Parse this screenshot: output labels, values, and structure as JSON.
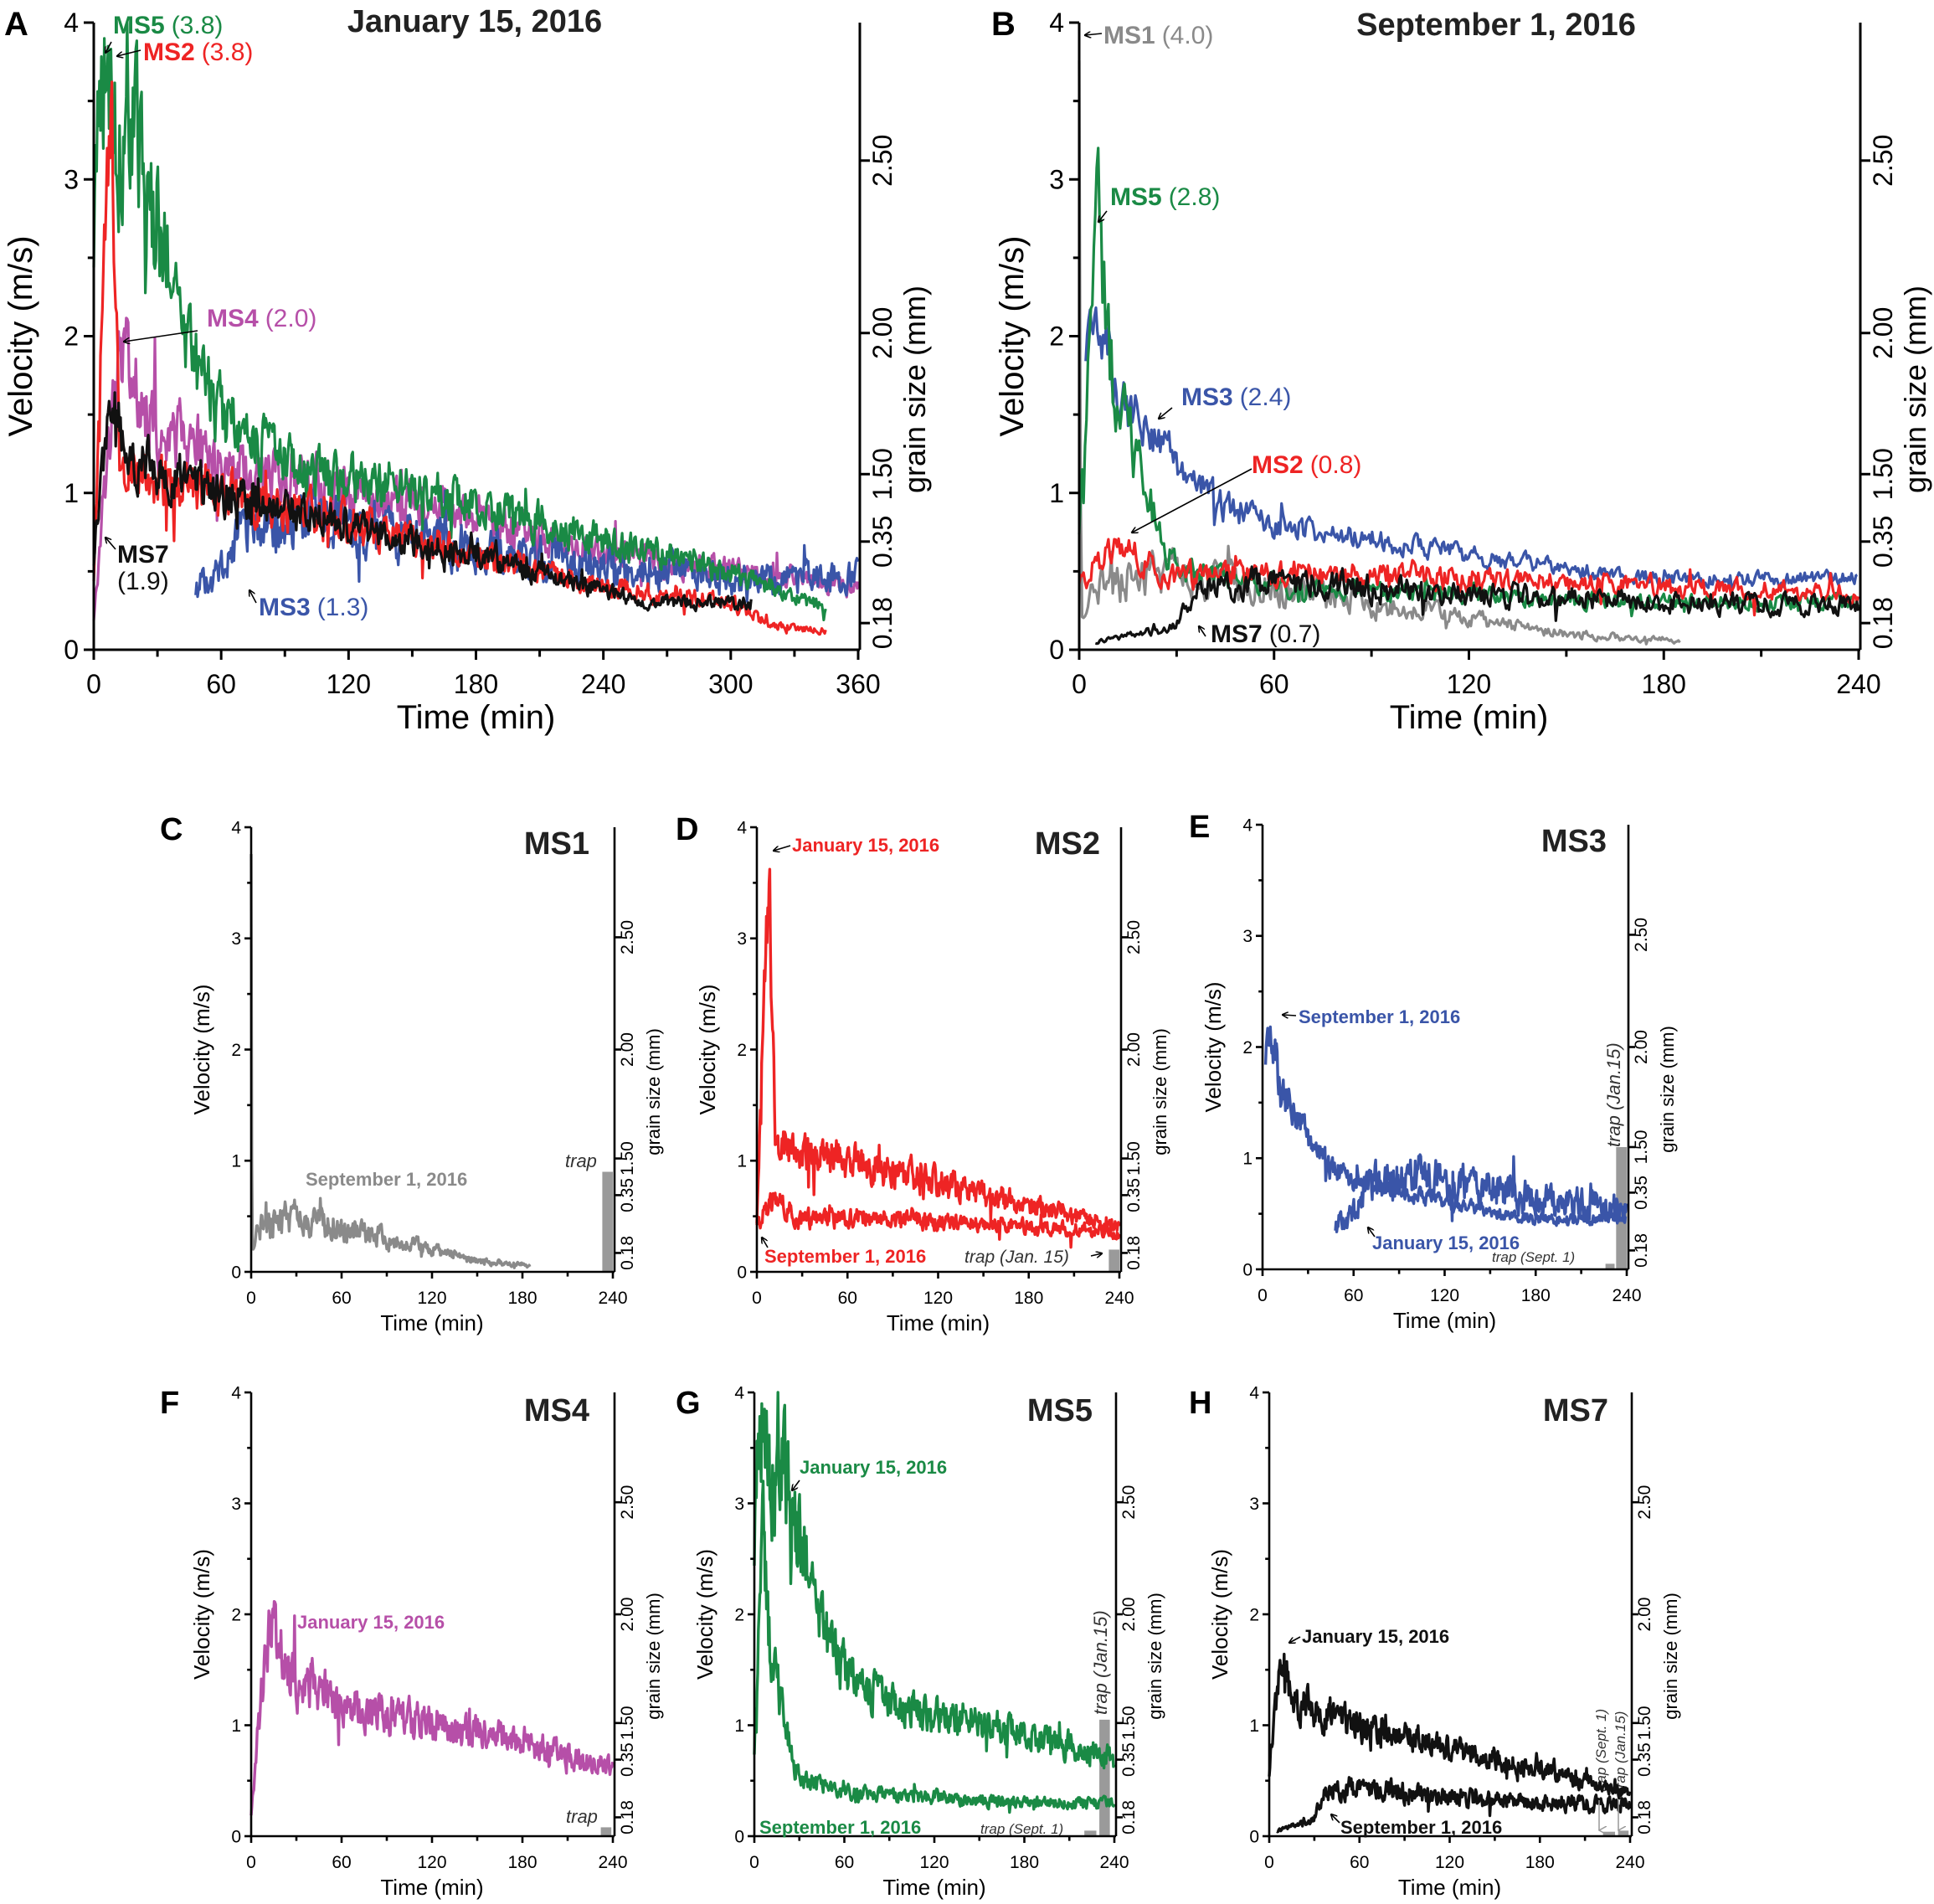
{
  "colors": {
    "MS1": "#8a8a8a",
    "MS2": "#ee2424",
    "MS3": "#3a55a8",
    "MS4": "#b64fa8",
    "MS5": "#1a8a45",
    "MS7": "#111111",
    "trap": "#9a9a9a"
  },
  "axis_labels": {
    "velocity": "Velocity (m/s)",
    "time": "Time (min)",
    "grain": "grain size (mm)"
  },
  "chart_data": [
    {
      "id": "A",
      "letter": "A",
      "type": "line",
      "title": "January 15, 2016",
      "xlabel": "Time (min)",
      "ylabel": "Velocity (m/s)",
      "y2label": "grain size (mm)",
      "xlim": [
        0,
        360
      ],
      "ylim": [
        0,
        4
      ],
      "x_ticks": [
        "0",
        "60",
        "120",
        "180",
        "240",
        "300",
        "360"
      ],
      "y_ticks": [
        "0",
        "1",
        "2",
        "3",
        "4"
      ],
      "y2_ticks": [
        {
          "label": "0.18",
          "at_velocity": 0.17
        },
        {
          "label": "0.35",
          "at_velocity": 0.69
        },
        {
          "label": "1.50",
          "at_velocity": 1.12
        },
        {
          "label": "2.00",
          "at_velocity": 2.02
        },
        {
          "label": "2.50",
          "at_velocity": 3.12
        }
      ],
      "series": [
        {
          "id": "MS4",
          "name": "MS4",
          "peak": "(2.0)",
          "noise": 0.14,
          "points": [
            [
              0,
              0.2
            ],
            [
              5,
              1.0
            ],
            [
              12,
              1.9
            ],
            [
              30,
              1.4
            ],
            [
              60,
              1.2
            ],
            [
              120,
              1.0
            ],
            [
              180,
              0.85
            ],
            [
              240,
              0.62
            ],
            [
              300,
              0.5
            ],
            [
              360,
              0.4
            ]
          ]
        },
        {
          "id": "MS3",
          "name": "MS3",
          "peak": "(1.3)",
          "noise": 0.2,
          "points": [
            [
              48,
              0.4
            ],
            [
              60,
              0.5
            ],
            [
              75,
              0.85
            ],
            [
              120,
              0.8
            ],
            [
              180,
              0.62
            ],
            [
              240,
              0.55
            ],
            [
              300,
              0.45
            ],
            [
              360,
              0.45
            ]
          ]
        },
        {
          "id": "MS5",
          "name": "MS5",
          "peak": "(3.8)",
          "noise": 0.13,
          "points": [
            [
              0,
              2.7
            ],
            [
              3,
              3.6
            ],
            [
              6,
              3.75
            ],
            [
              12,
              3.2
            ],
            [
              20,
              3.3
            ],
            [
              30,
              2.6
            ],
            [
              40,
              2.3
            ],
            [
              45,
              1.9
            ],
            [
              60,
              1.5
            ],
            [
              90,
              1.2
            ],
            [
              120,
              1.1
            ],
            [
              180,
              0.95
            ],
            [
              240,
              0.7
            ],
            [
              300,
              0.5
            ],
            [
              330,
              0.35
            ],
            [
              345,
              0.25
            ]
          ]
        },
        {
          "id": "MS2",
          "name": "MS2",
          "peak": "(3.8)",
          "noise": 0.14,
          "points": [
            [
              0,
              0.5
            ],
            [
              5,
              2.4
            ],
            [
              8,
              3.75
            ],
            [
              10,
              2.3
            ],
            [
              12,
              1.3
            ],
            [
              20,
              1.1
            ],
            [
              60,
              1.0
            ],
            [
              120,
              0.8
            ],
            [
              180,
              0.6
            ],
            [
              240,
              0.4
            ],
            [
              300,
              0.3
            ],
            [
              320,
              0.15
            ],
            [
              345,
              0.12
            ]
          ]
        },
        {
          "id": "MS7",
          "name": "MS7",
          "peak": "(1.9)",
          "noise": 0.12,
          "points": [
            [
              0,
              0.5
            ],
            [
              3,
              1.1
            ],
            [
              8,
              1.5
            ],
            [
              20,
              1.2
            ],
            [
              60,
              1.0
            ],
            [
              120,
              0.8
            ],
            [
              180,
              0.6
            ],
            [
              240,
              0.38
            ],
            [
              260,
              0.3
            ],
            [
              310,
              0.3
            ]
          ]
        }
      ],
      "annotations": [
        {
          "name": "MS5",
          "value": "(3.8)",
          "series": "MS5"
        },
        {
          "name": "MS2",
          "value": "(3.8)",
          "series": "MS2"
        },
        {
          "name": "MS4",
          "value": "(2.0)",
          "series": "MS4"
        },
        {
          "name": "MS7",
          "value": "(1.9)",
          "series": "MS7"
        },
        {
          "name": "MS3",
          "value": "(1.3)",
          "series": "MS3"
        }
      ],
      "traps": []
    },
    {
      "id": "B",
      "letter": "B",
      "type": "line",
      "title": "September 1, 2016",
      "xlabel": "Time (min)",
      "ylabel": "Velocity (m/s)",
      "y2label": "grain size (mm)",
      "xlim": [
        0,
        240
      ],
      "ylim": [
        0,
        4
      ],
      "x_ticks": [
        "0",
        "60",
        "120",
        "180",
        "240"
      ],
      "y_ticks": [
        "0",
        "1",
        "2",
        "3",
        "4"
      ],
      "y2_ticks": [
        {
          "label": "0.18",
          "at_velocity": 0.17
        },
        {
          "label": "0.35",
          "at_velocity": 0.69
        },
        {
          "label": "1.50",
          "at_velocity": 1.12
        },
        {
          "label": "2.00",
          "at_velocity": 2.02
        },
        {
          "label": "2.50",
          "at_velocity": 3.12
        }
      ],
      "series": [
        {
          "id": "MS1",
          "name": "MS1",
          "peak": "(4.0)",
          "noise": 0.25,
          "points": [
            [
              0,
              4.0
            ],
            [
              0.6,
              0.3
            ],
            [
              10,
              0.45
            ],
            [
              30,
              0.5
            ],
            [
              60,
              0.4
            ],
            [
              90,
              0.3
            ],
            [
              120,
              0.2
            ],
            [
              150,
              0.1
            ],
            [
              185,
              0.06
            ]
          ]
        },
        {
          "id": "MS3",
          "name": "MS3",
          "peak": "(2.4)",
          "noise": 0.09,
          "points": [
            [
              2,
              1.9
            ],
            [
              5,
              2.3
            ],
            [
              12,
              1.6
            ],
            [
              30,
              1.2
            ],
            [
              45,
              0.9
            ],
            [
              60,
              0.8
            ],
            [
              90,
              0.7
            ],
            [
              120,
              0.6
            ],
            [
              180,
              0.45
            ],
            [
              240,
              0.45
            ]
          ]
        },
        {
          "id": "MS5",
          "name": "MS5",
          "peak": "(2.8)",
          "noise": 0.15,
          "points": [
            [
              0,
              0.8
            ],
            [
              3,
              1.8
            ],
            [
              6,
              2.8
            ],
            [
              10,
              1.8
            ],
            [
              20,
              1.0
            ],
            [
              30,
              0.5
            ],
            [
              60,
              0.4
            ],
            [
              120,
              0.35
            ],
            [
              180,
              0.3
            ],
            [
              240,
              0.3
            ]
          ]
        },
        {
          "id": "MS2",
          "name": "MS2",
          "peak": "(0.8)",
          "noise": 0.15,
          "points": [
            [
              0,
              0.45
            ],
            [
              12,
              0.65
            ],
            [
              30,
              0.45
            ],
            [
              60,
              0.5
            ],
            [
              120,
              0.45
            ],
            [
              180,
              0.4
            ],
            [
              240,
              0.35
            ]
          ]
        },
        {
          "id": "MS7",
          "name": "MS7",
          "peak": "(0.7)",
          "noise": 0.2,
          "points": [
            [
              5,
              0.05
            ],
            [
              30,
              0.15
            ],
            [
              35,
              0.38
            ],
            [
              60,
              0.45
            ],
            [
              90,
              0.4
            ],
            [
              120,
              0.35
            ],
            [
              180,
              0.3
            ],
            [
              240,
              0.28
            ]
          ]
        }
      ],
      "annotations": [
        {
          "name": "MS1",
          "value": "(4.0)",
          "series": "MS1"
        },
        {
          "name": "MS5",
          "value": "(2.8)",
          "series": "MS5"
        },
        {
          "name": "MS3",
          "value": "(2.4)",
          "series": "MS3"
        },
        {
          "name": "MS2",
          "value": "(0.8)",
          "series": "MS2"
        },
        {
          "name": "MS7",
          "value": "(0.7)",
          "series": "MS7"
        }
      ],
      "traps": []
    },
    {
      "id": "C",
      "letter": "C",
      "type": "line",
      "title": "MS1",
      "xlim": [
        0,
        240
      ],
      "ylim": [
        0,
        4
      ],
      "x_ticks": [
        "0",
        "60",
        "120",
        "180",
        "240"
      ],
      "y_ticks": [
        "0",
        "1",
        "2",
        "3",
        "4"
      ],
      "y2_ticks": [
        {
          "label": "0.18",
          "at_velocity": 0.17
        },
        {
          "label": "0.35",
          "at_velocity": 0.69
        },
        {
          "label": "1.50",
          "at_velocity": 1.02
        },
        {
          "label": "2.00",
          "at_velocity": 2.0
        },
        {
          "label": "2.50",
          "at_velocity": 3.01
        }
      ],
      "series": [
        {
          "ref": "B.MS1",
          "date": "September 1, 2016"
        }
      ],
      "annotations": [
        {
          "name": "September 1, 2016",
          "series": "MS1"
        }
      ],
      "traps": [
        {
          "label": "trap",
          "height": 0.9,
          "x_range": [
            233,
            240
          ]
        }
      ]
    },
    {
      "id": "D",
      "letter": "D",
      "type": "line",
      "title": "MS2",
      "xlim": [
        0,
        240
      ],
      "ylim": [
        0,
        4
      ],
      "x_ticks": [
        "0",
        "60",
        "120",
        "180",
        "240"
      ],
      "y_ticks": [
        "0",
        "1",
        "2",
        "3",
        "4"
      ],
      "y2_ticks": [
        {
          "label": "0.18",
          "at_velocity": 0.17
        },
        {
          "label": "0.35",
          "at_velocity": 0.69
        },
        {
          "label": "1.50",
          "at_velocity": 1.02
        },
        {
          "label": "2.00",
          "at_velocity": 2.0
        },
        {
          "label": "2.50",
          "at_velocity": 3.01
        }
      ],
      "series": [
        {
          "ref": "A.MS2",
          "date": "January 15, 2016"
        },
        {
          "ref": "B.MS2",
          "date": "September 1, 2016"
        }
      ],
      "annotations": [
        {
          "name": "January 15, 2016",
          "series": "MS2"
        },
        {
          "name": "September 1, 2016",
          "series": "MS2"
        }
      ],
      "traps": [
        {
          "label": "trap (Jan. 15)",
          "height": 0.2,
          "x_range": [
            233,
            240
          ]
        }
      ]
    },
    {
      "id": "E",
      "letter": "E",
      "type": "line",
      "title": "MS3",
      "xlim": [
        0,
        240
      ],
      "ylim": [
        0,
        4
      ],
      "x_ticks": [
        "0",
        "60",
        "120",
        "180",
        "240"
      ],
      "y_ticks": [
        "0",
        "1",
        "2",
        "3",
        "4"
      ],
      "y2_ticks": [
        {
          "label": "0.18",
          "at_velocity": 0.17
        },
        {
          "label": "0.35",
          "at_velocity": 0.69
        },
        {
          "label": "1.50",
          "at_velocity": 1.1
        },
        {
          "label": "2.00",
          "at_velocity": 2.0
        },
        {
          "label": "2.50",
          "at_velocity": 3.01
        }
      ],
      "series": [
        {
          "ref": "B.MS3",
          "date": "September 1, 2016"
        },
        {
          "ref": "A.MS3",
          "date": "January 15, 2016"
        }
      ],
      "annotations": [
        {
          "name": "September 1, 2016",
          "series": "MS3"
        },
        {
          "name": "January 15, 2016",
          "series": "MS3"
        }
      ],
      "traps": [
        {
          "label": "trap (Sept. 1)",
          "height": 0.05,
          "x_range": [
            226,
            232
          ]
        },
        {
          "label": "trap (Jan.15)",
          "height": 1.1,
          "x_range": [
            233,
            240
          ]
        }
      ]
    },
    {
      "id": "F",
      "letter": "F",
      "type": "line",
      "title": "MS4",
      "xlim": [
        0,
        240
      ],
      "ylim": [
        0,
        4
      ],
      "x_ticks": [
        "0",
        "60",
        "120",
        "180",
        "240"
      ],
      "y_ticks": [
        "0",
        "1",
        "2",
        "3",
        "4"
      ],
      "y2_ticks": [
        {
          "label": "0.18",
          "at_velocity": 0.17
        },
        {
          "label": "0.35",
          "at_velocity": 0.69
        },
        {
          "label": "1.50",
          "at_velocity": 1.02
        },
        {
          "label": "2.00",
          "at_velocity": 2.0
        },
        {
          "label": "2.50",
          "at_velocity": 3.01
        }
      ],
      "series": [
        {
          "ref": "A.MS4",
          "date": "January 15, 2016"
        }
      ],
      "annotations": [
        {
          "name": "January 15, 2016",
          "series": "MS4"
        }
      ],
      "traps": [
        {
          "label": "trap",
          "height": 0.08,
          "x_range": [
            232,
            239
          ]
        }
      ]
    },
    {
      "id": "G",
      "letter": "G",
      "type": "line",
      "title": "MS5",
      "xlim": [
        0,
        240
      ],
      "ylim": [
        0,
        4
      ],
      "x_ticks": [
        "0",
        "60",
        "120",
        "180",
        "240"
      ],
      "y_ticks": [
        "0",
        "1",
        "2",
        "3",
        "4"
      ],
      "y2_ticks": [
        {
          "label": "0.18",
          "at_velocity": 0.17
        },
        {
          "label": "0.35",
          "at_velocity": 0.69
        },
        {
          "label": "1.50",
          "at_velocity": 1.02
        },
        {
          "label": "2.00",
          "at_velocity": 2.0
        },
        {
          "label": "2.50",
          "at_velocity": 3.01
        }
      ],
      "series": [
        {
          "ref": "A.MS5",
          "date": "January 15, 2016"
        },
        {
          "ref": "B.MS5",
          "date": "September 1, 2016"
        }
      ],
      "annotations": [
        {
          "name": "January 15, 2016",
          "series": "MS5"
        },
        {
          "name": "September 1, 2016",
          "series": "MS5"
        }
      ],
      "traps": [
        {
          "label": "trap (Sept. 1)",
          "height": 0.05,
          "x_range": [
            220,
            228
          ]
        },
        {
          "label": "trap (Jan.15)",
          "height": 1.05,
          "x_range": [
            230,
            237
          ]
        }
      ]
    },
    {
      "id": "H",
      "letter": "H",
      "type": "line",
      "title": "MS7",
      "xlim": [
        0,
        240
      ],
      "ylim": [
        0,
        4
      ],
      "x_ticks": [
        "0",
        "60",
        "120",
        "180",
        "240"
      ],
      "y_ticks": [
        "0",
        "1",
        "2",
        "3",
        "4"
      ],
      "y2_ticks": [
        {
          "label": "0.18",
          "at_velocity": 0.17
        },
        {
          "label": "0.35",
          "at_velocity": 0.69
        },
        {
          "label": "1.50",
          "at_velocity": 1.02
        },
        {
          "label": "2.00",
          "at_velocity": 2.0
        },
        {
          "label": "2.50",
          "at_velocity": 3.01
        }
      ],
      "series": [
        {
          "ref": "A.MS7",
          "date": "January 15, 2016"
        },
        {
          "ref": "B.MS7",
          "date": "September 1, 2016"
        }
      ],
      "annotations": [
        {
          "name": "January 15, 2016",
          "series": "MS7"
        },
        {
          "name": "September 1, 2016",
          "series": "MS7"
        }
      ],
      "traps": [
        {
          "label": "trap (Sept. 1)",
          "height": 0.04,
          "x_range": [
            222,
            230
          ]
        },
        {
          "label": "trap (Jan.15)",
          "height": 0.05,
          "x_range": [
            232,
            239
          ]
        }
      ]
    }
  ]
}
